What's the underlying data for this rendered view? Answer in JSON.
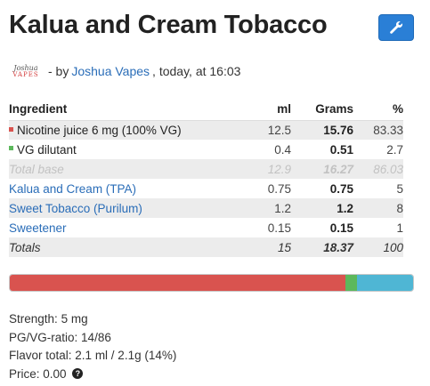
{
  "recipe": {
    "title": "Kalua and Cream Tobacco",
    "logo_text": [
      "Joshua",
      "VAPES"
    ],
    "byline_prefix": "- by",
    "author": "Joshua Vapes",
    "byline_suffix": ", today, at 16:03"
  },
  "colors": {
    "nicotine": "#d9534f",
    "vg": "#5cb85c",
    "flavor": "#4fb6d4",
    "accent": "#2a7fd6"
  },
  "table": {
    "headers": {
      "ingredient": "Ingredient",
      "ml": "ml",
      "grams": "Grams",
      "pct": "%"
    },
    "base_rows": [
      {
        "name": "Nicotine juice 6 mg (100% VG)",
        "ml": "12.5",
        "grams": "15.76",
        "pct": "83.33",
        "swatch": "nicotine"
      },
      {
        "name": "VG dilutant",
        "ml": "0.4",
        "grams": "0.51",
        "pct": "2.7",
        "swatch": "vg"
      }
    ],
    "total_base": {
      "name": "Total base",
      "ml": "12.9",
      "grams": "16.27",
      "pct": "86.03"
    },
    "flavor_rows": [
      {
        "name": "Kalua and Cream (TPA)",
        "ml": "0.75",
        "grams": "0.75",
        "pct": "5"
      },
      {
        "name": "Sweet Tobacco (Purilum)",
        "ml": "1.2",
        "grams": "1.2",
        "pct": "8"
      },
      {
        "name": "Sweetener",
        "ml": "0.15",
        "grams": "0.15",
        "pct": "1"
      }
    ],
    "totals": {
      "name": "Totals",
      "ml": "15",
      "grams": "18.37",
      "pct": "100"
    }
  },
  "composition_bar": [
    {
      "component": "nicotine",
      "percent": 83.33
    },
    {
      "component": "vg",
      "percent": 2.7
    },
    {
      "component": "flavor",
      "percent": 13.97
    }
  ],
  "summary": {
    "strength_label": "Strength:",
    "strength_value": "5 mg",
    "pgvg_label": "PG/VG-ratio:",
    "pgvg_value": "14/86",
    "flavor_label": "Flavor total:",
    "flavor_value": "2.1 ml / 2.1g (14%)",
    "price_label": "Price:",
    "price_value": "0.00",
    "help_glyph": "?"
  }
}
